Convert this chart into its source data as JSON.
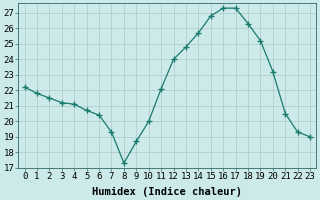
{
  "x": [
    0,
    1,
    2,
    3,
    4,
    5,
    6,
    7,
    8,
    9,
    10,
    11,
    12,
    13,
    14,
    15,
    16,
    17,
    18,
    19,
    20,
    21,
    22,
    23
  ],
  "y": [
    22.2,
    21.8,
    21.5,
    21.2,
    21.1,
    20.7,
    20.4,
    19.3,
    17.3,
    18.7,
    20.0,
    22.1,
    24.0,
    24.8,
    25.7,
    26.8,
    27.3,
    27.3,
    26.3,
    25.2,
    23.2,
    20.5,
    19.3,
    19.0
  ],
  "line_color": "#1a7a6e",
  "marker": "+",
  "marker_size": 4,
  "bg_color": "#cceaea",
  "grid_color": "#b0c8c8",
  "xlabel": "Humidex (Indice chaleur)",
  "xlabel_fontsize": 7.5,
  "xlabel_fontweight": "bold",
  "tick_fontsize": 6.5,
  "xlim": [
    -0.5,
    23.5
  ],
  "ylim": [
    17,
    27.6
  ],
  "yticks": [
    17,
    18,
    19,
    20,
    21,
    22,
    23,
    24,
    25,
    26,
    27
  ],
  "xticks": [
    0,
    1,
    2,
    3,
    4,
    5,
    6,
    7,
    8,
    9,
    10,
    11,
    12,
    13,
    14,
    15,
    16,
    17,
    18,
    19,
    20,
    21,
    22,
    23
  ]
}
